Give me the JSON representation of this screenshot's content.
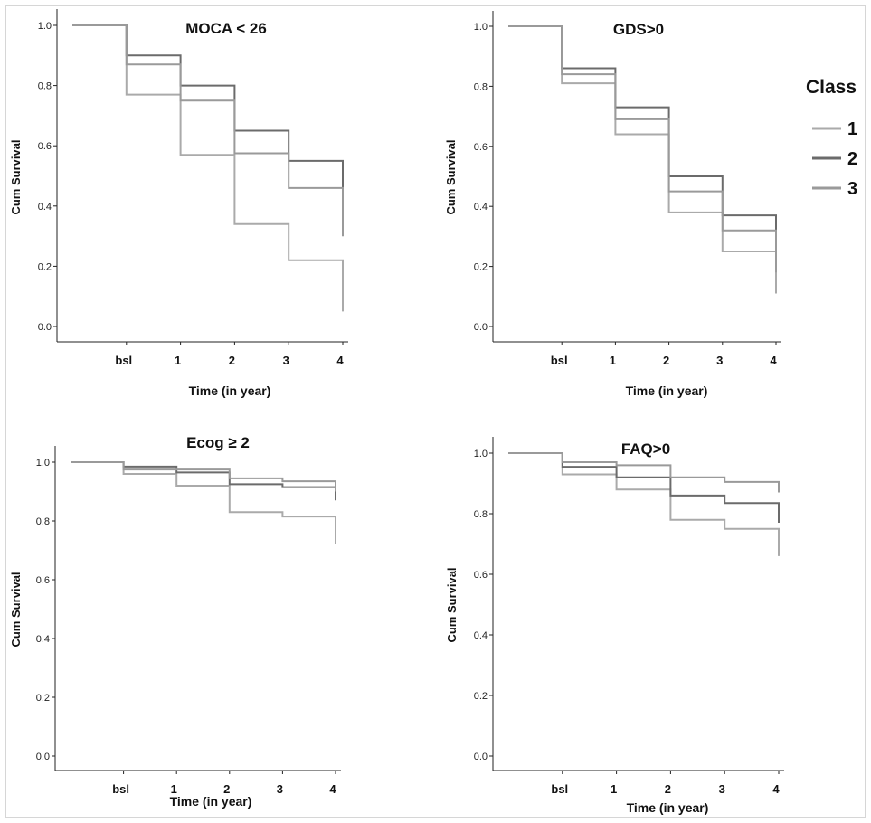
{
  "legend": {
    "title": "Class",
    "items": [
      {
        "label": "1",
        "color": "#aaaaaa"
      },
      {
        "label": "2",
        "color": "#6b6b6b"
      },
      {
        "label": "3",
        "color": "#9a9a9a"
      }
    ]
  },
  "chart_data": [
    {
      "type": "line",
      "title": "MOCA < 26",
      "xlabel": "Time (in year)",
      "ylabel": "Cum Survival",
      "x_categories": [
        "bsl",
        "1",
        "2",
        "3",
        "4"
      ],
      "x_range": [
        -1,
        4
      ],
      "ylim": [
        0,
        1
      ],
      "y_ticks": [
        "0.0",
        "0.2",
        "0.4",
        "0.6",
        "0.8",
        "1.0"
      ],
      "grid": false,
      "legend_position": "right",
      "series": [
        {
          "name": "1",
          "color": "#aaaaaa",
          "steps": [
            [
              -1,
              1.0
            ],
            [
              0,
              0.77
            ],
            [
              1,
              0.57
            ],
            [
              2,
              0.34
            ],
            [
              3,
              0.22
            ],
            [
              4,
              0.05
            ]
          ]
        },
        {
          "name": "2",
          "color": "#6b6b6b",
          "steps": [
            [
              -1,
              1.0
            ],
            [
              0,
              0.9
            ],
            [
              1,
              0.8
            ],
            [
              2,
              0.65
            ],
            [
              3,
              0.55
            ],
            [
              4,
              0.3
            ]
          ]
        },
        {
          "name": "3",
          "color": "#9a9a9a",
          "steps": [
            [
              -1,
              1.0
            ],
            [
              0,
              0.87
            ],
            [
              1,
              0.75
            ],
            [
              2,
              0.575
            ],
            [
              3,
              0.46
            ],
            [
              4,
              0.3
            ]
          ]
        }
      ]
    },
    {
      "type": "line",
      "title": "GDS>0",
      "xlabel": "Time (in year)",
      "ylabel": "Cum Survival",
      "x_categories": [
        "bsl",
        "1",
        "2",
        "3",
        "4"
      ],
      "x_range": [
        -1,
        4
      ],
      "ylim": [
        0,
        1
      ],
      "y_ticks": [
        "0.0",
        "0.2",
        "0.4",
        "0.6",
        "0.8",
        "1.0"
      ],
      "grid": false,
      "series": [
        {
          "name": "1",
          "color": "#aaaaaa",
          "steps": [
            [
              -1,
              1.0
            ],
            [
              0,
              0.81
            ],
            [
              1,
              0.64
            ],
            [
              2,
              0.38
            ],
            [
              3,
              0.25
            ],
            [
              4,
              0.11
            ]
          ]
        },
        {
          "name": "2",
          "color": "#6b6b6b",
          "steps": [
            [
              -1,
              1.0
            ],
            [
              0,
              0.86
            ],
            [
              1,
              0.73
            ],
            [
              2,
              0.5
            ],
            [
              3,
              0.37
            ],
            [
              4,
              0.25
            ]
          ]
        },
        {
          "name": "3",
          "color": "#9a9a9a",
          "steps": [
            [
              -1,
              1.0
            ],
            [
              0,
              0.84
            ],
            [
              1,
              0.69
            ],
            [
              2,
              0.45
            ],
            [
              3,
              0.32
            ],
            [
              4,
              0.18
            ]
          ]
        }
      ]
    },
    {
      "type": "line",
      "title": "Ecog ≥ 2",
      "xlabel": "Time (in year)",
      "ylabel": "Cum Survival",
      "x_categories": [
        "bsl",
        "1",
        "2",
        "3",
        "4"
      ],
      "x_range": [
        -1,
        4
      ],
      "ylim": [
        0,
        1
      ],
      "y_ticks": [
        "0.0",
        "0.2",
        "0.4",
        "0.6",
        "0.8",
        "1.0"
      ],
      "grid": false,
      "series": [
        {
          "name": "1",
          "color": "#aaaaaa",
          "steps": [
            [
              -1,
              1.0
            ],
            [
              0,
              0.96
            ],
            [
              1,
              0.92
            ],
            [
              2,
              0.83
            ],
            [
              3,
              0.815
            ],
            [
              4,
              0.72
            ]
          ]
        },
        {
          "name": "2",
          "color": "#6b6b6b",
          "steps": [
            [
              -1,
              1.0
            ],
            [
              0,
              0.985
            ],
            [
              1,
              0.965
            ],
            [
              2,
              0.925
            ],
            [
              3,
              0.915
            ],
            [
              4,
              0.87
            ]
          ]
        },
        {
          "name": "3",
          "color": "#9a9a9a",
          "steps": [
            [
              -1,
              1.0
            ],
            [
              0,
              0.975
            ],
            [
              1,
              0.975
            ],
            [
              2,
              0.945
            ],
            [
              3,
              0.935
            ],
            [
              4,
              0.9
            ]
          ]
        }
      ]
    },
    {
      "type": "line",
      "title": "FAQ>0",
      "xlabel": "Time (in year)",
      "ylabel": "Cum Survival",
      "x_categories": [
        "bsl",
        "1",
        "2",
        "3",
        "4"
      ],
      "x_range": [
        -1,
        4
      ],
      "ylim": [
        0,
        1
      ],
      "y_ticks": [
        "0.0",
        "0.2",
        "0.4",
        "0.6",
        "0.8",
        "1.0"
      ],
      "grid": false,
      "series": [
        {
          "name": "1",
          "color": "#aaaaaa",
          "steps": [
            [
              -1,
              1.0
            ],
            [
              0,
              0.93
            ],
            [
              1,
              0.88
            ],
            [
              2,
              0.78
            ],
            [
              3,
              0.75
            ],
            [
              4,
              0.66
            ]
          ]
        },
        {
          "name": "2",
          "color": "#6b6b6b",
          "steps": [
            [
              -1,
              1.0
            ],
            [
              0,
              0.955
            ],
            [
              1,
              0.92
            ],
            [
              2,
              0.86
            ],
            [
              3,
              0.835
            ],
            [
              4,
              0.77
            ]
          ]
        },
        {
          "name": "3",
          "color": "#9a9a9a",
          "steps": [
            [
              -1,
              1.0
            ],
            [
              0,
              0.97
            ],
            [
              1,
              0.96
            ],
            [
              2,
              0.92
            ],
            [
              3,
              0.905
            ],
            [
              4,
              0.87
            ]
          ]
        }
      ]
    }
  ]
}
